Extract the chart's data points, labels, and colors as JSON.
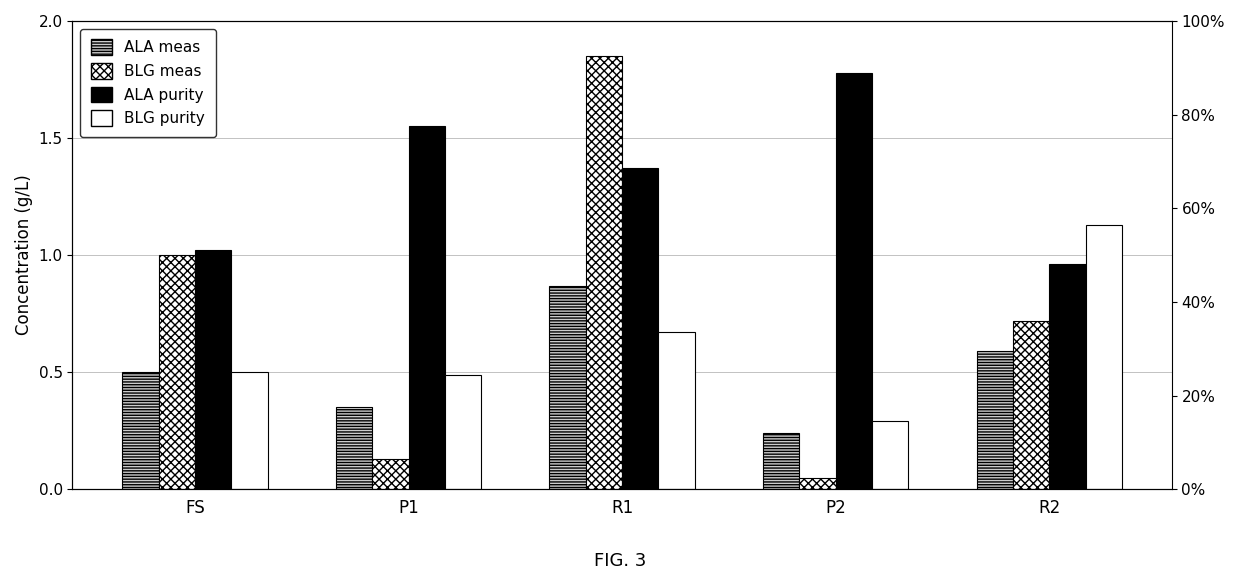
{
  "categories": [
    "FS",
    "P1",
    "R1",
    "P2",
    "R2"
  ],
  "ALA_meas": [
    0.5,
    0.35,
    0.87,
    0.24,
    0.59
  ],
  "BLG_meas": [
    1.0,
    0.13,
    1.85,
    0.05,
    0.72
  ],
  "ALA_purity": [
    1.02,
    1.55,
    1.37,
    1.78,
    0.96
  ],
  "BLG_purity": [
    0.5,
    0.49,
    0.67,
    0.29,
    1.13
  ],
  "ylabel_left": "Concentration (g/L)",
  "ylim_left": [
    0,
    2.0
  ],
  "ylim_right": [
    0,
    1.0
  ],
  "yticks_left": [
    0,
    0.5,
    1.0,
    1.5,
    2.0
  ],
  "yticks_right_vals": [
    0,
    0.2,
    0.4,
    0.6,
    0.8,
    1.0
  ],
  "yticks_right_labels": [
    "0%",
    "20%",
    "40%",
    "60%",
    "80%",
    "100%"
  ],
  "figure_caption": "FIG. 3",
  "bar_width": 0.17,
  "background_color": "#ffffff",
  "plot_bg_color": "#ffffff"
}
